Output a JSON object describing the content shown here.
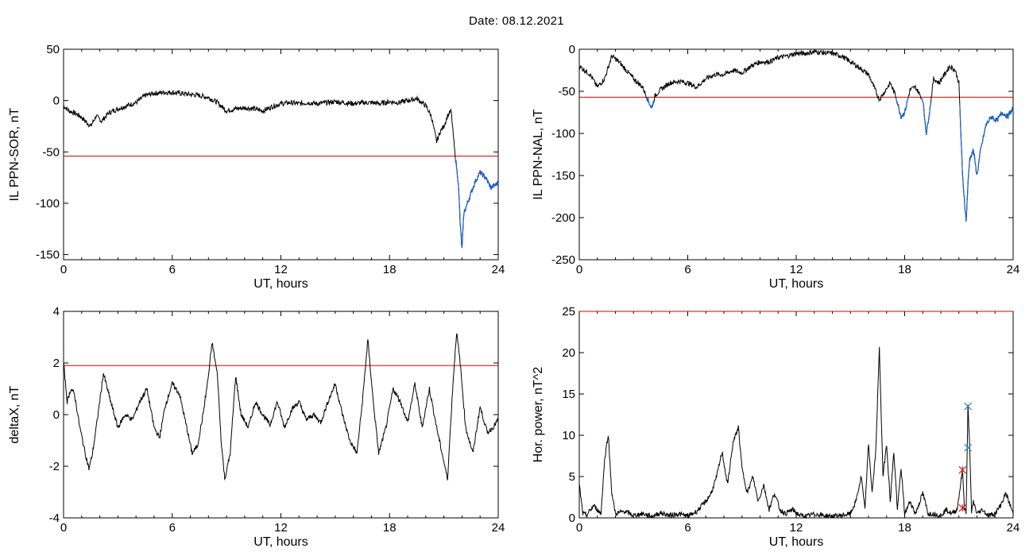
{
  "header": {
    "date_label": "Date:  08.12.2021"
  },
  "chart_data": [
    {
      "type": "line",
      "ylabel": "IL PPN-SOR, nT",
      "xlabel": "UT, hours",
      "xlim": [
        0,
        24
      ],
      "ylim": [
        -155,
        50
      ],
      "xticks": [
        0,
        6,
        12,
        18,
        24
      ],
      "yticks": [
        50,
        0,
        -50,
        -100,
        -150
      ],
      "threshold": -54,
      "colors": {
        "main": "#000000",
        "below_threshold": "#1a5fc8",
        "threshold": "#e00000"
      },
      "series": [
        {
          "x": [
            0,
            0.3,
            0.6,
            0.9,
            1.2,
            1.5,
            1.8,
            2.1,
            2.5,
            3,
            3.5,
            4,
            4.5,
            5,
            5.5,
            6,
            6.5,
            7,
            7.5,
            8,
            8.5,
            9,
            9.5,
            10,
            10.5,
            11,
            11.5,
            12,
            12.5,
            13,
            13.5,
            14,
            14.5,
            15,
            15.5,
            16,
            16.5,
            17,
            17.5,
            18,
            18.5,
            19,
            19.5,
            20,
            20.3,
            20.6,
            20.8,
            21,
            21.2,
            21.4,
            21.6,
            21.8,
            21.9,
            22,
            22.1,
            22.3,
            22.5,
            22.7,
            23,
            23.3,
            23.6,
            24
          ],
          "y": [
            -5,
            -10,
            -12,
            -15,
            -20,
            -25,
            -15,
            -20,
            -12,
            -8,
            -5,
            -2,
            5,
            7,
            8,
            8,
            7,
            6,
            5,
            3,
            -2,
            -10,
            -8,
            -7,
            -8,
            -10,
            -6,
            -3,
            -2,
            -3,
            -2,
            -3,
            -2,
            -1,
            -2,
            -3,
            -2,
            -2,
            -3,
            -1,
            -2,
            0,
            2,
            -5,
            -15,
            -40,
            -30,
            -25,
            -15,
            -10,
            -50,
            -80,
            -120,
            -145,
            -110,
            -100,
            -90,
            -80,
            -70,
            -75,
            -85,
            -80
          ]
        }
      ]
    },
    {
      "type": "line",
      "ylabel": "IL PPN-NAL, nT",
      "xlabel": "UT, hours",
      "xlim": [
        0,
        24
      ],
      "ylim": [
        -250,
        0
      ],
      "xticks": [
        0,
        6,
        12,
        18,
        24
      ],
      "yticks": [
        0,
        -50,
        -100,
        -150,
        -200,
        -250
      ],
      "threshold": -57,
      "colors": {
        "main": "#000000",
        "below_threshold": "#1a5fc8",
        "threshold": "#e00000"
      },
      "series": [
        {
          "x": [
            0,
            0.3,
            0.6,
            1,
            1.4,
            1.8,
            2.2,
            2.6,
            3,
            3.5,
            3.8,
            4,
            4.2,
            4.5,
            5,
            5.5,
            6,
            6.5,
            7,
            7.5,
            8,
            8.5,
            9,
            9.5,
            10,
            10.5,
            11,
            11.5,
            12,
            12.5,
            13,
            13.5,
            14,
            14.5,
            15,
            15.5,
            16,
            16.3,
            16.6,
            16.9,
            17.2,
            17.5,
            17.8,
            18,
            18.3,
            18.6,
            19,
            19.2,
            19.4,
            19.6,
            19.9,
            20.2,
            20.5,
            20.8,
            21,
            21.2,
            21.4,
            21.5,
            21.6,
            21.8,
            22,
            22.2,
            22.5,
            22.8,
            23.1,
            23.4,
            23.7,
            24
          ],
          "y": [
            -20,
            -25,
            -30,
            -45,
            -35,
            -8,
            -15,
            -25,
            -35,
            -45,
            -60,
            -70,
            -55,
            -48,
            -40,
            -38,
            -40,
            -45,
            -35,
            -30,
            -30,
            -25,
            -28,
            -20,
            -15,
            -15,
            -10,
            -8,
            -5,
            -5,
            -3,
            -4,
            -5,
            -8,
            -15,
            -22,
            -30,
            -45,
            -60,
            -50,
            -40,
            -55,
            -80,
            -75,
            -48,
            -45,
            -60,
            -100,
            -70,
            -35,
            -40,
            -30,
            -20,
            -25,
            -40,
            -150,
            -205,
            -160,
            -130,
            -120,
            -150,
            -120,
            -90,
            -80,
            -85,
            -75,
            -80,
            -70
          ]
        }
      ]
    },
    {
      "type": "line",
      "ylabel": "deltaX, nT",
      "xlabel": "UT, hours",
      "xlim": [
        0,
        24
      ],
      "ylim": [
        -4,
        4
      ],
      "xticks": [
        0,
        6,
        12,
        18,
        24
      ],
      "yticks": [
        4,
        2,
        0,
        -2,
        -4
      ],
      "threshold": 1.9,
      "colors": {
        "main": "#000000",
        "threshold": "#e00000"
      },
      "series": [
        {
          "x": [
            0,
            0.2,
            0.4,
            0.6,
            0.9,
            1.2,
            1.4,
            1.6,
            1.9,
            2.2,
            2.6,
            3,
            3.4,
            3.8,
            4.2,
            4.6,
            5,
            5.3,
            5.6,
            6,
            6.4,
            6.8,
            7.1,
            7.4,
            7.7,
            8,
            8.2,
            8.5,
            8.7,
            8.9,
            9.2,
            9.5,
            9.8,
            10.2,
            10.6,
            11,
            11.4,
            11.8,
            12.2,
            12.6,
            13,
            13.4,
            13.8,
            14.2,
            14.6,
            15,
            15.4,
            15.8,
            16.2,
            16.5,
            16.8,
            17.1,
            17.4,
            17.8,
            18.2,
            18.6,
            19,
            19.4,
            19.8,
            20.2,
            20.6,
            20.9,
            21.2,
            21.5,
            21.7,
            21.9,
            22.2,
            22.6,
            23,
            23.4,
            23.7,
            24
          ],
          "y": [
            2,
            0.5,
            1,
            0.8,
            -0.5,
            -1.5,
            -2.1,
            -1.5,
            0,
            1.6,
            0.5,
            -0.5,
            0,
            -0.2,
            0.5,
            1,
            -0.5,
            -0.9,
            0.3,
            1.2,
            0.8,
            -0.5,
            -1.5,
            -1.2,
            0,
            1.5,
            2.8,
            1.5,
            -1,
            -2.5,
            -1.5,
            1.5,
            0,
            -0.5,
            0.5,
            0,
            -0.4,
            0.5,
            -0.5,
            0.2,
            0.5,
            -0.2,
            0,
            -0.3,
            0.5,
            1.2,
            0,
            -1,
            -1.5,
            0.5,
            2.9,
            0.5,
            -1.5,
            -0.5,
            1,
            0.5,
            -0.3,
            1.2,
            -0.5,
            1,
            -0.5,
            -1.5,
            -2.5,
            1.2,
            3.2,
            2,
            -0.5,
            -1.5,
            0.3,
            -0.7,
            -0.5,
            -0.2
          ]
        }
      ]
    },
    {
      "type": "line",
      "ylabel": "Hor. power, nT^2",
      "xlabel": "UT, hours",
      "xlim": [
        0,
        24
      ],
      "ylim": [
        0,
        25
      ],
      "xticks": [
        0,
        6,
        12,
        18,
        24
      ],
      "yticks": [
        0,
        5,
        10,
        15,
        20,
        25
      ],
      "threshold": 25,
      "colors": {
        "main": "#000000",
        "threshold": "#e00000",
        "marker_red": "#cc2222",
        "marker_cyan": "#2a8fbd"
      },
      "series": [
        {
          "x": [
            0,
            0.2,
            0.4,
            0.8,
            1,
            1.2,
            1.4,
            1.6,
            1.8,
            2,
            2.5,
            3,
            3.5,
            4,
            4.5,
            5,
            5.5,
            6,
            6.5,
            7,
            7.3,
            7.6,
            7.9,
            8.2,
            8.5,
            8.8,
            9,
            9.3,
            9.6,
            9.9,
            10.2,
            10.5,
            10.8,
            11.1,
            11.4,
            11.8,
            12.2,
            12.6,
            13,
            13.5,
            14,
            14.5,
            15,
            15.3,
            15.6,
            15.8,
            16,
            16.2,
            16.4,
            16.6,
            16.8,
            17,
            17.2,
            17.4,
            17.6,
            17.8,
            18,
            18.3,
            18.6,
            19,
            19.3,
            19.6,
            20,
            20.3,
            20.6,
            20.9,
            21.2,
            21.3,
            21.4,
            21.5,
            21.6,
            21.7,
            21.8,
            22,
            22.3,
            22.6,
            23,
            23.3,
            23.6,
            24
          ],
          "y": [
            4,
            0.5,
            0.3,
            1.5,
            1,
            0.5,
            7,
            10.2,
            3,
            0.5,
            0.8,
            0.3,
            0.5,
            0.2,
            0.6,
            0.3,
            0.5,
            0.2,
            0.8,
            2,
            3,
            5,
            8,
            4,
            9,
            11,
            6,
            3,
            5,
            2,
            4,
            1,
            3,
            1,
            0.5,
            1,
            0.3,
            0.2,
            0.5,
            0.3,
            0.2,
            0.3,
            0.5,
            2,
            5,
            1,
            9,
            3,
            8,
            20.5,
            5,
            9,
            2,
            8,
            1,
            6,
            0.5,
            2,
            0.5,
            3,
            0.5,
            0.5,
            0.3,
            1,
            0.5,
            1,
            5.8,
            1.5,
            0.5,
            13.5,
            8.5,
            0.5,
            2,
            0.5,
            1,
            0.3,
            0.5,
            1.5,
            3,
            0.5
          ]
        }
      ],
      "markers": [
        {
          "x": 21.5,
          "y": 13.5,
          "symbol": "x",
          "color": "marker_cyan"
        },
        {
          "x": 21.5,
          "y": 8.5,
          "symbol": "x",
          "color": "marker_cyan"
        },
        {
          "x": 21.2,
          "y": 5.8,
          "symbol": "star",
          "color": "marker_red"
        },
        {
          "x": 21.2,
          "y": 1.2,
          "symbol": "star",
          "color": "marker_red"
        }
      ]
    }
  ]
}
